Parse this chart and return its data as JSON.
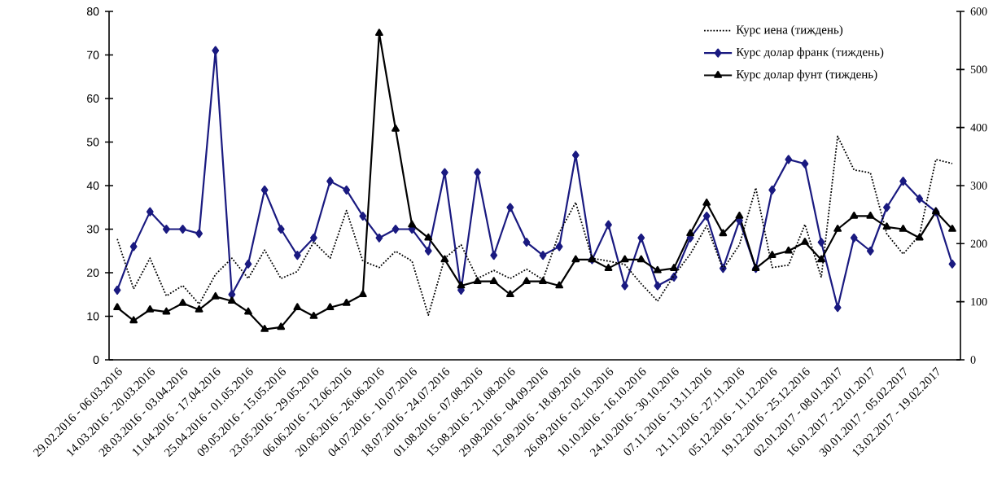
{
  "chart_data": {
    "type": "line",
    "categories": [
      "29.02.2016 - 06.03.2016",
      null,
      "14.03.2016 - 20.03.2016",
      null,
      "28.03.2016 - 03.04.2016",
      null,
      "11.04.2016 - 17.04.2016",
      null,
      "25.04.2016 - 01.05.2016",
      null,
      "09.05.2016 - 15.05.2016",
      null,
      "23.05.2016 - 29.05.2016",
      null,
      "06.06.2016 - 12.06.2016",
      null,
      "20.06.2016 - 26.06.2016",
      null,
      "04.07.2016 - 10.07.2016",
      null,
      "18.07.2016 - 24.07.2016",
      null,
      "01.08.2016 - 07.08.2016",
      null,
      "15.08.2016 - 21.08.2016",
      null,
      "29.08.2016 - 04.09.2016",
      null,
      "12.09.2016 - 18.09.2016",
      null,
      "26.09.2016 - 02.10.2016",
      null,
      "10.10.2016 - 16.10.2016",
      null,
      "24.10.2016 - 30.10.2016",
      null,
      "07.11.2016 - 13.11.2016",
      null,
      "21.11.2016 - 27.11.2016",
      null,
      "05.12.2016 - 11.12.2016",
      null,
      "19.12.2016 - 25.12.2016",
      null,
      "02.01.2017 - 08.01.2017",
      null,
      "16.01.2017 - 22.01.2017",
      null,
      "30.01.2017 - 05.02.2017",
      null,
      "13.02.2017 - 19.02.2017",
      null
    ],
    "series": [
      {
        "name": "Курс иена (тиждень)",
        "color": "#000000",
        "axis": "y2",
        "line_style": "dotted",
        "marker": "none",
        "values": [
          208,
          122,
          175,
          110,
          128,
          96,
          147,
          175,
          140,
          189,
          140,
          152,
          203,
          175,
          257,
          170,
          159,
          187,
          170,
          77,
          175,
          198,
          140,
          154,
          140,
          156,
          138,
          219,
          271,
          175,
          170,
          164,
          131,
          101,
          145,
          182,
          231,
          156,
          198,
          296,
          159,
          163,
          233,
          142,
          385,
          327,
          322,
          217,
          182,
          215,
          345,
          338
        ]
      },
      {
        "name": "Курс долар франк (тиждень)",
        "color": "#1a1a80",
        "marker": "diamond",
        "line_style": "solid",
        "values": [
          16,
          26,
          34,
          30,
          30,
          29,
          71,
          15,
          22,
          39,
          30,
          24,
          28,
          41,
          39,
          33,
          28,
          30,
          30,
          25,
          43,
          16,
          43,
          24,
          35,
          27,
          24,
          26,
          47,
          23,
          31,
          17,
          28,
          17,
          19,
          28,
          33,
          21,
          32,
          21,
          39,
          46,
          45,
          27,
          12,
          28,
          25,
          35,
          41,
          37,
          34,
          22
        ]
      },
      {
        "name": "Курс долар фунт (тиждень)",
        "color": "#000000",
        "marker": "triangle",
        "line_style": "solid",
        "values": [
          12,
          9,
          11.5,
          11,
          13,
          11.5,
          14.5,
          13.5,
          11,
          7,
          7.5,
          12,
          10,
          12,
          13,
          15,
          75,
          53,
          31,
          28,
          23,
          17,
          18,
          18,
          15,
          18,
          18,
          17,
          23,
          23,
          21,
          23,
          23,
          20.5,
          21,
          29,
          36,
          29,
          33,
          21,
          24,
          25,
          27,
          23,
          30,
          33,
          33,
          30.5,
          30,
          28,
          34,
          30
        ]
      }
    ],
    "ylim": [
      0,
      80
    ],
    "yticks": [
      0,
      10,
      20,
      30,
      40,
      50,
      60,
      70,
      80
    ],
    "y2lim": [
      0,
      600
    ],
    "y2ticks": [
      0,
      100,
      200,
      300,
      400,
      500,
      600
    ],
    "legend": "top right"
  }
}
